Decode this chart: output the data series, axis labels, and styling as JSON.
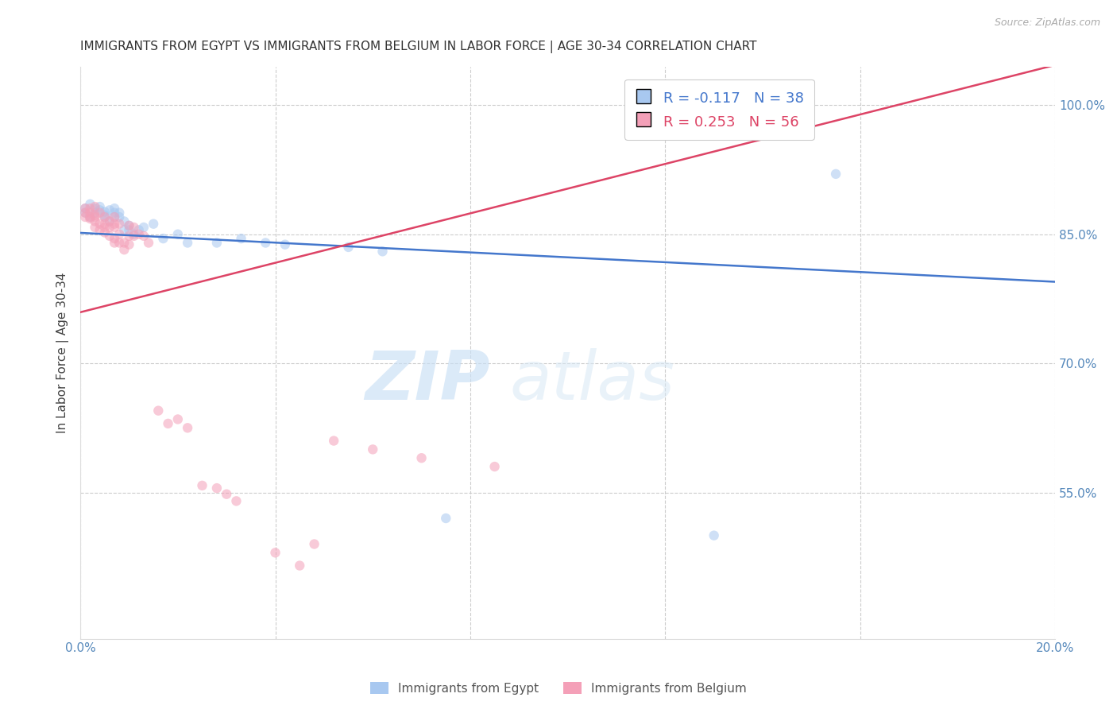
{
  "title": "IMMIGRANTS FROM EGYPT VS IMMIGRANTS FROM BELGIUM IN LABOR FORCE | AGE 30-34 CORRELATION CHART",
  "source": "Source: ZipAtlas.com",
  "ylabel": "In Labor Force | Age 30-34",
  "xlim": [
    0.0,
    0.2
  ],
  "ylim": [
    0.38,
    1.045
  ],
  "xticks": [
    0.0,
    0.04,
    0.08,
    0.12,
    0.16,
    0.2
  ],
  "xticklabels": [
    "0.0%",
    "",
    "",
    "",
    "",
    "20.0%"
  ],
  "yticks_right": [
    0.55,
    0.7,
    0.85,
    1.0
  ],
  "ytick_labels_right": [
    "55.0%",
    "70.0%",
    "85.0%",
    "100.0%"
  ],
  "legend_blue_r": "-0.117",
  "legend_blue_n": "38",
  "legend_pink_r": "0.253",
  "legend_pink_n": "56",
  "legend_label_blue": "Immigrants from Egypt",
  "legend_label_pink": "Immigrants from Belgium",
  "blue_color": "#A8C8F0",
  "pink_color": "#F4A0B8",
  "blue_line_color": "#4477CC",
  "pink_line_color": "#DD4466",
  "title_color": "#333333",
  "axis_color": "#5588BB",
  "watermark_zip": "ZIP",
  "watermark_atlas": "atlas",
  "background_color": "#FFFFFF",
  "grid_color": "#CCCCCC",
  "grid_linestyle": "--",
  "marker_size": 80,
  "marker_alpha": 0.55,
  "line_width": 1.8,
  "egypt_x": [
    0.001,
    0.001,
    0.002,
    0.002,
    0.003,
    0.003,
    0.004,
    0.004,
    0.005,
    0.005,
    0.005,
    0.006,
    0.006,
    0.007,
    0.007,
    0.007,
    0.008,
    0.008,
    0.009,
    0.009,
    0.01,
    0.01,
    0.011,
    0.012,
    0.013,
    0.015,
    0.017,
    0.02,
    0.022,
    0.028,
    0.033,
    0.038,
    0.042,
    0.055,
    0.062,
    0.075,
    0.13,
    0.155
  ],
  "egypt_y": [
    0.875,
    0.88,
    0.885,
    0.87,
    0.88,
    0.875,
    0.878,
    0.882,
    0.876,
    0.87,
    0.872,
    0.865,
    0.878,
    0.87,
    0.875,
    0.88,
    0.875,
    0.87,
    0.865,
    0.855,
    0.86,
    0.855,
    0.85,
    0.855,
    0.858,
    0.862,
    0.845,
    0.85,
    0.84,
    0.84,
    0.845,
    0.84,
    0.838,
    0.835,
    0.83,
    0.52,
    0.5,
    0.92
  ],
  "belgium_x": [
    0.001,
    0.001,
    0.001,
    0.002,
    0.002,
    0.002,
    0.002,
    0.003,
    0.003,
    0.003,
    0.003,
    0.003,
    0.004,
    0.004,
    0.004,
    0.005,
    0.005,
    0.005,
    0.005,
    0.006,
    0.006,
    0.006,
    0.007,
    0.007,
    0.007,
    0.007,
    0.007,
    0.008,
    0.008,
    0.008,
    0.009,
    0.009,
    0.01,
    0.01,
    0.01,
    0.011,
    0.011,
    0.012,
    0.013,
    0.014,
    0.016,
    0.018,
    0.02,
    0.022,
    0.025,
    0.028,
    0.03,
    0.032,
    0.04,
    0.045,
    0.048,
    0.052,
    0.06,
    0.07,
    0.085,
    0.13
  ],
  "belgium_y": [
    0.88,
    0.875,
    0.87,
    0.875,
    0.868,
    0.88,
    0.87,
    0.882,
    0.87,
    0.865,
    0.872,
    0.858,
    0.875,
    0.862,
    0.855,
    0.87,
    0.862,
    0.858,
    0.852,
    0.865,
    0.858,
    0.848,
    0.87,
    0.862,
    0.858,
    0.845,
    0.84,
    0.862,
    0.85,
    0.84,
    0.84,
    0.832,
    0.86,
    0.848,
    0.838,
    0.858,
    0.848,
    0.85,
    0.848,
    0.84,
    0.645,
    0.63,
    0.635,
    0.625,
    0.558,
    0.555,
    0.548,
    0.54,
    0.48,
    0.465,
    0.49,
    0.61,
    0.6,
    0.59,
    0.58,
    1.0
  ]
}
